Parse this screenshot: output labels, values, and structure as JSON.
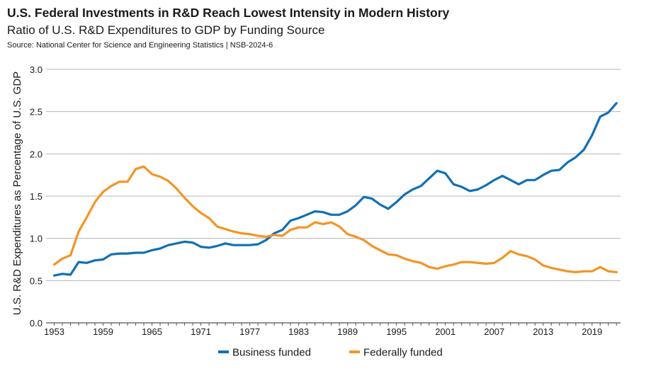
{
  "chart_data": {
    "type": "line",
    "title": "U.S. Federal Investments in R&D Reach Lowest Intensity in Modern History",
    "subtitle": "Ratio of U.S. R&D Expenditures to GDP by Funding Source",
    "source": "Source: National Center for Science and Engineering Statistics | NSB-2024-6",
    "ylabel": "U.S. R&D Expenditures as Percentage of U.S. GDP",
    "xlabel": "",
    "xlim": [
      1952,
      2022.5
    ],
    "ylim": [
      0,
      3.0
    ],
    "y_ticks": [
      "0.0",
      "0.5",
      "1.0",
      "1.5",
      "2.0",
      "2.5",
      "3.0"
    ],
    "x_ticks": [
      "1953",
      "1959",
      "1965",
      "1971",
      "1977",
      "1983",
      "1989",
      "1995",
      "2001",
      "2007",
      "2013",
      "2019"
    ],
    "grid": "horizontal",
    "legend_position": "bottom",
    "x": [
      1953,
      1954,
      1955,
      1956,
      1957,
      1958,
      1959,
      1960,
      1961,
      1962,
      1963,
      1964,
      1965,
      1966,
      1967,
      1968,
      1969,
      1970,
      1971,
      1972,
      1973,
      1974,
      1975,
      1976,
      1977,
      1978,
      1979,
      1980,
      1981,
      1982,
      1983,
      1984,
      1985,
      1986,
      1987,
      1988,
      1989,
      1990,
      1991,
      1992,
      1993,
      1994,
      1995,
      1996,
      1997,
      1998,
      1999,
      2000,
      2001,
      2002,
      2003,
      2004,
      2005,
      2006,
      2007,
      2008,
      2009,
      2010,
      2011,
      2012,
      2013,
      2014,
      2015,
      2016,
      2017,
      2018,
      2019,
      2020,
      2021,
      2022
    ],
    "series": [
      {
        "name": "Business funded",
        "color": "#1170b4",
        "values": [
          0.56,
          0.58,
          0.57,
          0.72,
          0.71,
          0.74,
          0.75,
          0.81,
          0.82,
          0.82,
          0.83,
          0.83,
          0.86,
          0.88,
          0.92,
          0.94,
          0.96,
          0.95,
          0.9,
          0.89,
          0.91,
          0.94,
          0.92,
          0.92,
          0.92,
          0.93,
          0.98,
          1.06,
          1.1,
          1.21,
          1.24,
          1.28,
          1.32,
          1.31,
          1.28,
          1.28,
          1.32,
          1.39,
          1.49,
          1.47,
          1.4,
          1.35,
          1.43,
          1.52,
          1.58,
          1.62,
          1.71,
          1.8,
          1.77,
          1.64,
          1.61,
          1.56,
          1.58,
          1.63,
          1.69,
          1.74,
          1.69,
          1.64,
          1.69,
          1.69,
          1.75,
          1.8,
          1.81,
          1.9,
          1.96,
          2.05,
          2.22,
          2.44,
          2.49,
          2.6
        ]
      },
      {
        "name": "Federally funded",
        "color": "#f39425",
        "values": [
          0.69,
          0.76,
          0.8,
          1.08,
          1.25,
          1.43,
          1.55,
          1.62,
          1.67,
          1.67,
          1.82,
          1.85,
          1.76,
          1.73,
          1.68,
          1.59,
          1.48,
          1.38,
          1.3,
          1.24,
          1.14,
          1.11,
          1.08,
          1.06,
          1.05,
          1.03,
          1.02,
          1.04,
          1.03,
          1.1,
          1.13,
          1.13,
          1.19,
          1.17,
          1.19,
          1.14,
          1.05,
          1.02,
          0.98,
          0.91,
          0.86,
          0.81,
          0.8,
          0.76,
          0.73,
          0.71,
          0.66,
          0.64,
          0.67,
          0.69,
          0.72,
          0.72,
          0.71,
          0.7,
          0.71,
          0.77,
          0.85,
          0.81,
          0.79,
          0.75,
          0.68,
          0.65,
          0.63,
          0.61,
          0.6,
          0.61,
          0.61,
          0.66,
          0.61,
          0.6
        ]
      }
    ]
  }
}
